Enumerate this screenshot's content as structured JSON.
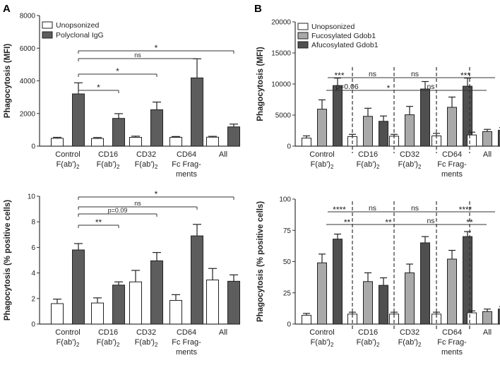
{
  "panel_labels": {
    "A": "A",
    "B": "B"
  },
  "chart_data": [
    {
      "id": "A-top",
      "type": "bar",
      "ylabel": "Phagocytosis (MFI)",
      "ylim": [
        0,
        8000
      ],
      "yticks": [
        0,
        2000,
        4000,
        6000,
        8000
      ],
      "categories": [
        "Control F(ab')2",
        "CD16 F(ab')2",
        "CD32 F(ab')2",
        "CD64 Fc Fragments",
        "All"
      ],
      "series": [
        {
          "name": "Unopsonized",
          "color": "#ffffff",
          "values": [
            480,
            470,
            540,
            540,
            550
          ],
          "errors": [
            60,
            60,
            70,
            50,
            50
          ]
        },
        {
          "name": "Polyclonal IgG",
          "color": "#5d5d5d",
          "values": [
            3200,
            1700,
            2230,
            4180,
            1180
          ],
          "errors": [
            680,
            290,
            470,
            1170,
            170
          ]
        }
      ],
      "annotations": [
        {
          "text": "*",
          "from": 1,
          "to": 2
        },
        {
          "text": "*",
          "from": 1,
          "to": 3
        },
        {
          "text": "ns",
          "from": 1,
          "to": 4
        },
        {
          "text": "*",
          "from": 1,
          "to": 5
        }
      ],
      "legend": "top-left"
    },
    {
      "id": "A-bottom",
      "type": "bar",
      "ylabel": "Phagocytosis (% positive cells)",
      "ylim": [
        0,
        10
      ],
      "yticks": [
        0,
        2,
        4,
        6,
        8,
        10
      ],
      "categories": [
        "Control F(ab')2",
        "CD16 F(ab')2",
        "CD32 F(ab')2",
        "CD64 Fc Fragments",
        "All"
      ],
      "series": [
        {
          "name": "Unopsonized",
          "color": "#ffffff",
          "values": [
            1.6,
            1.65,
            3.3,
            1.85,
            3.45
          ],
          "errors": [
            0.35,
            0.4,
            0.9,
            0.45,
            0.9
          ]
        },
        {
          "name": "Polyclonal IgG",
          "color": "#5d5d5d",
          "values": [
            5.8,
            3.05,
            4.95,
            6.9,
            3.35
          ],
          "errors": [
            0.5,
            0.25,
            0.65,
            0.9,
            0.5
          ]
        }
      ],
      "annotations": [
        {
          "text": "**",
          "from": 1,
          "to": 2
        },
        {
          "text": "p=0.09",
          "from": 1,
          "to": 3
        },
        {
          "text": "ns",
          "from": 1,
          "to": 4
        },
        {
          "text": "*",
          "from": 1,
          "to": 5
        }
      ]
    },
    {
      "id": "B-top",
      "type": "bar",
      "ylabel": "Phagocytosis (MFI)",
      "ylim": [
        0,
        20000
      ],
      "yticks": [
        0,
        5000,
        10000,
        15000,
        20000
      ],
      "categories": [
        "Control F(ab')2",
        "CD16 F(ab')2",
        "CD32 F(ab')2",
        "CD64 Fc Frag-ments",
        "All"
      ],
      "series": [
        {
          "name": "Unopsonized",
          "color": "#ffffff",
          "values": [
            1300,
            1550,
            1600,
            1650,
            1800
          ],
          "errors": [
            350,
            350,
            300,
            400,
            450
          ]
        },
        {
          "name": "Fucosylated Gdob1",
          "color": "#a9a9a9",
          "values": [
            5950,
            4800,
            5050,
            6250,
            2350
          ],
          "errors": [
            1500,
            1300,
            1350,
            1650,
            350
          ]
        },
        {
          "name": "Afucosylated Gdob1",
          "color": "#4f4f4f",
          "values": [
            9750,
            4000,
            9200,
            9650,
            2550
          ],
          "errors": [
            1200,
            850,
            1200,
            1300,
            450
          ]
        }
      ],
      "annotations": [
        {
          "text": "***",
          "group_from": 0,
          "group_to": 1,
          "row": 1
        },
        {
          "text": "ns",
          "group_from": 1,
          "group_to": 2,
          "row": 1
        },
        {
          "text": "ns",
          "group_from": 2,
          "group_to": 3,
          "row": 1
        },
        {
          "text": "***",
          "group_from": 3,
          "group_to": 4,
          "row": 1
        },
        {
          "text": "p=0.06",
          "group_from": 0,
          "group_to": 1,
          "row": 2
        },
        {
          "text": "*",
          "group_from": 1,
          "group_to": 2,
          "row": 2
        },
        {
          "text": "ns",
          "group_from": 2,
          "group_to": 3,
          "row": 2
        },
        {
          "text": "*",
          "group_from": 3,
          "group_to": 4,
          "row": 2
        }
      ],
      "legend": "top-left"
    },
    {
      "id": "B-bottom",
      "type": "bar",
      "ylabel": "Phagocytosis (% positive cells)",
      "ylim": [
        0,
        100
      ],
      "yticks": [
        0,
        25,
        50,
        75,
        100
      ],
      "categories": [
        "Control F(ab')2",
        "CD16 F(ab')2",
        "CD32 F(ab')2",
        "CD64 Fc Frag-ments",
        "All"
      ],
      "series": [
        {
          "name": "Unopsonized",
          "color": "#ffffff",
          "values": [
            7,
            8,
            8,
            8,
            9
          ],
          "errors": [
            1.5,
            1.5,
            1.5,
            1.5,
            1.5
          ]
        },
        {
          "name": "Fucosylated Gdob1",
          "color": "#a9a9a9",
          "values": [
            49,
            34,
            41,
            52,
            10
          ],
          "errors": [
            7,
            7,
            7,
            7,
            2
          ]
        },
        {
          "name": "Afucosylated Gdob1",
          "color": "#4f4f4f",
          "values": [
            68,
            31,
            65,
            70,
            12
          ],
          "errors": [
            4,
            6,
            5,
            4,
            2
          ]
        }
      ],
      "annotations": [
        {
          "text": "****",
          "group_from": 0,
          "group_to": 1,
          "row": 1
        },
        {
          "text": "ns",
          "group_from": 1,
          "group_to": 2,
          "row": 1
        },
        {
          "text": "ns",
          "group_from": 2,
          "group_to": 3,
          "row": 1
        },
        {
          "text": "****",
          "group_from": 3,
          "group_to": 4,
          "row": 1
        },
        {
          "text": "**",
          "group_from": 0,
          "group_to": 1,
          "row": 2
        },
        {
          "text": "**",
          "group_from": 1,
          "group_to": 2,
          "row": 2
        },
        {
          "text": "ns",
          "group_from": 2,
          "group_to": 3,
          "row": 2
        },
        {
          "text": "**",
          "group_from": 3,
          "group_to": 4,
          "row": 2
        }
      ]
    }
  ]
}
